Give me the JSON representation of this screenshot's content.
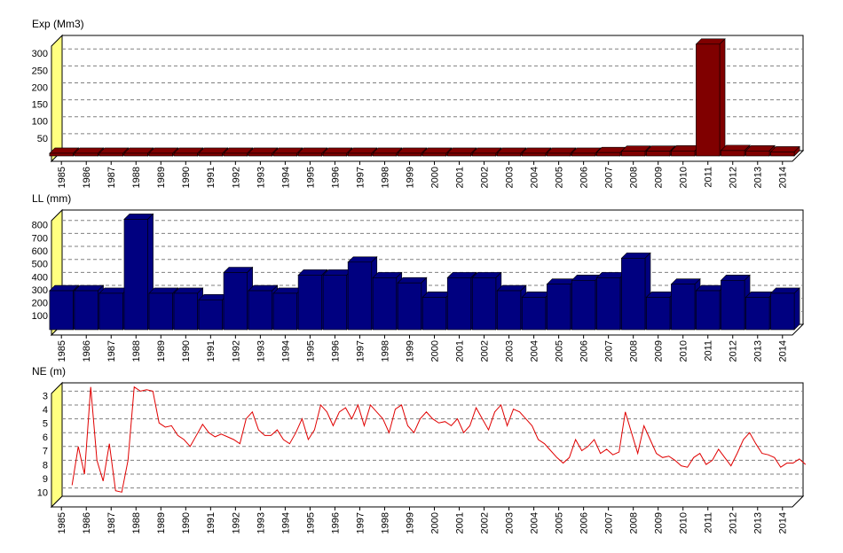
{
  "chart_data": [
    {
      "type": "bar",
      "title": "Exp (Mm3)",
      "color": "#800000",
      "x": [
        1985,
        1986,
        1987,
        1988,
        1989,
        1990,
        1991,
        1992,
        1993,
        1994,
        1995,
        1996,
        1997,
        1998,
        1999,
        2000,
        2001,
        2002,
        2003,
        2004,
        2005,
        2006,
        2007,
        2008,
        2009,
        2010,
        2011,
        2012,
        2013,
        2014
      ],
      "values": [
        8,
        8,
        8,
        8,
        8,
        8,
        8,
        8,
        8,
        8,
        8,
        8,
        8,
        8,
        8,
        8,
        8,
        8,
        8,
        8,
        8,
        8,
        10,
        14,
        14,
        15,
        330,
        16,
        15,
        12
      ],
      "ylim": [
        0,
        340
      ],
      "yticks": [
        50,
        100,
        150,
        200,
        250,
        300
      ],
      "xlim": [
        1984.6,
        2014.4
      ],
      "xticks": [
        1985,
        1986,
        1987,
        1988,
        1989,
        1990,
        1991,
        1992,
        1993,
        1994,
        1995,
        1996,
        1997,
        1998,
        1999,
        2000,
        2001,
        2002,
        2003,
        2004,
        2005,
        2006,
        2007,
        2008,
        2009,
        2010,
        2011,
        2012,
        2013,
        2014
      ],
      "grid": true
    },
    {
      "type": "bar",
      "title": "LL (mm)",
      "color": "#000080",
      "x": [
        1985,
        1986,
        1987,
        1988,
        1989,
        1990,
        1991,
        1992,
        1993,
        1994,
        1995,
        1996,
        1997,
        1998,
        1999,
        2000,
        2001,
        2002,
        2003,
        2004,
        2005,
        2006,
        2007,
        2008,
        2009,
        2010,
        2011,
        2012,
        2013,
        2014
      ],
      "values": [
        300,
        300,
        280,
        850,
        280,
        280,
        230,
        440,
        300,
        280,
        420,
        420,
        520,
        400,
        360,
        250,
        400,
        400,
        300,
        250,
        350,
        380,
        400,
        550,
        250,
        350,
        300,
        380,
        250,
        280
      ],
      "ylim": [
        0,
        880
      ],
      "yticks": [
        100,
        200,
        300,
        400,
        500,
        600,
        700,
        800
      ],
      "xlim": [
        1984.6,
        2014.4
      ],
      "xticks": [
        1985,
        1986,
        1987,
        1988,
        1989,
        1990,
        1991,
        1992,
        1993,
        1994,
        1995,
        1996,
        1997,
        1998,
        1999,
        2000,
        2001,
        2002,
        2003,
        2004,
        2005,
        2006,
        2007,
        2008,
        2009,
        2010,
        2011,
        2012,
        2013,
        2014
      ],
      "grid": true
    },
    {
      "type": "line",
      "title": "NE (m)",
      "color": "#e00000",
      "y_inverted": true,
      "x": [
        1985,
        1985.25,
        1985.5,
        1985.75,
        1986,
        1986.25,
        1986.5,
        1986.75,
        1987,
        1987.25,
        1987.5,
        1987.75,
        1988,
        1988.25,
        1988.5,
        1988.75,
        1989,
        1989.25,
        1989.5,
        1989.75,
        1990,
        1990.25,
        1990.5,
        1990.75,
        1991,
        1991.25,
        1991.5,
        1991.75,
        1992,
        1992.25,
        1992.5,
        1992.75,
        1993,
        1993.25,
        1993.5,
        1993.75,
        1994,
        1994.25,
        1994.5,
        1994.75,
        1995,
        1995.25,
        1995.5,
        1995.75,
        1996,
        1996.25,
        1996.5,
        1996.75,
        1997,
        1997.25,
        1997.5,
        1997.75,
        1998,
        1998.25,
        1998.5,
        1998.75,
        1999,
        1999.25,
        1999.5,
        1999.75,
        2000,
        2000.25,
        2000.5,
        2000.75,
        2001,
        2001.25,
        2001.5,
        2001.75,
        2002,
        2002.25,
        2002.5,
        2002.75,
        2003,
        2003.25,
        2003.5,
        2003.75,
        2004,
        2004.25,
        2004.5,
        2004.75,
        2005,
        2005.25,
        2005.5,
        2005.75,
        2006,
        2006.25,
        2006.5,
        2006.75,
        2007,
        2007.25,
        2007.5,
        2007.75,
        2008,
        2008.25,
        2008.5,
        2008.75,
        2009,
        2009.25,
        2009.5,
        2009.75,
        2010,
        2010.25,
        2010.5,
        2010.75,
        2011,
        2011.25,
        2011.5,
        2011.75,
        2012,
        2012.25,
        2012.5,
        2012.75,
        2013,
        2013.25,
        2013.5,
        2013.75,
        2014,
        2014.25,
        2014.5
      ],
      "values": [
        9.8,
        7.0,
        9.0,
        2.7,
        8.0,
        9.5,
        6.8,
        10.2,
        10.3,
        8.0,
        2.7,
        3.0,
        2.9,
        3.0,
        5.3,
        5.6,
        5.5,
        6.2,
        6.5,
        7.0,
        6.2,
        5.4,
        6.0,
        6.3,
        6.1,
        6.3,
        6.5,
        6.8,
        5.0,
        4.5,
        5.8,
        6.2,
        6.2,
        5.8,
        6.5,
        6.8,
        6.0,
        5.0,
        6.5,
        5.8,
        4.0,
        4.5,
        5.5,
        4.5,
        4.2,
        5.0,
        4.0,
        5.5,
        4.0,
        4.5,
        5.0,
        6.0,
        4.3,
        4.0,
        5.5,
        6.0,
        5.0,
        4.5,
        5.0,
        5.3,
        5.2,
        5.5,
        5.0,
        6.0,
        5.5,
        4.2,
        5.0,
        5.8,
        4.5,
        4.0,
        5.5,
        4.3,
        4.5,
        5.0,
        5.5,
        6.5,
        6.8,
        7.3,
        7.8,
        8.2,
        7.8,
        6.5,
        7.3,
        7.0,
        6.5,
        7.5,
        7.2,
        7.6,
        7.4,
        4.5,
        6.0,
        7.5,
        5.5,
        6.5,
        7.5,
        7.8,
        7.7,
        8.0,
        8.4,
        8.5,
        7.8,
        7.5,
        8.3,
        8.0,
        7.2,
        7.8,
        8.4,
        7.5,
        6.5,
        6.0,
        6.8,
        7.5,
        7.6,
        7.8,
        8.5,
        8.2,
        8.2,
        7.9,
        8.3
      ],
      "ylim": [
        2.4,
        10.6
      ],
      "yticks": [
        3,
        4,
        5,
        6,
        7,
        8,
        9,
        10
      ],
      "xlim": [
        1984.6,
        2014.4
      ],
      "xticks": [
        1985,
        1986,
        1987,
        1988,
        1989,
        1990,
        1991,
        1992,
        1993,
        1994,
        1995,
        1996,
        1997,
        1998,
        1999,
        2000,
        2001,
        2002,
        2003,
        2004,
        2005,
        2006,
        2007,
        2008,
        2009,
        2010,
        2011,
        2012,
        2013,
        2014
      ],
      "grid": true
    }
  ]
}
